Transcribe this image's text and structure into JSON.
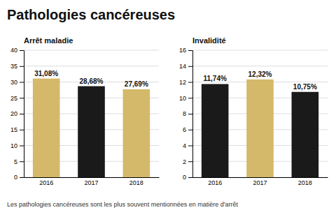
{
  "title": "Pathologies cancéreuses",
  "annotations": [
    "Les pathologies cancéreuses sont les plus souvent mentionnées en matière d'arrêt"
  ],
  "chart_data": [
    {
      "type": "bar",
      "subtitle": "Arrêt maladie",
      "categories": [
        "2016",
        "2017",
        "2018"
      ],
      "values": [
        31.08,
        28.68,
        27.69
      ],
      "value_labels": [
        "31,08%",
        "28,68%",
        "27,69%"
      ],
      "colors": [
        "#d4b96a",
        "#1a1a1a",
        "#d4b96a"
      ],
      "ylim": [
        0,
        40
      ],
      "yticks": [
        0,
        5,
        10,
        15,
        20,
        25,
        30,
        35,
        40
      ],
      "grid": true,
      "data_labels": true
    },
    {
      "type": "bar",
      "subtitle": "Invalidité",
      "categories": [
        "2016",
        "2017",
        "2018"
      ],
      "values": [
        11.74,
        12.32,
        10.75
      ],
      "value_labels": [
        "11,74%",
        "12,32%",
        "10,75%"
      ],
      "colors": [
        "#1a1a1a",
        "#d4b96a",
        "#1a1a1a"
      ],
      "ylim": [
        0,
        16
      ],
      "yticks": [
        0,
        2,
        4,
        6,
        8,
        10,
        12,
        14,
        16
      ],
      "grid": true,
      "data_labels": true
    }
  ]
}
